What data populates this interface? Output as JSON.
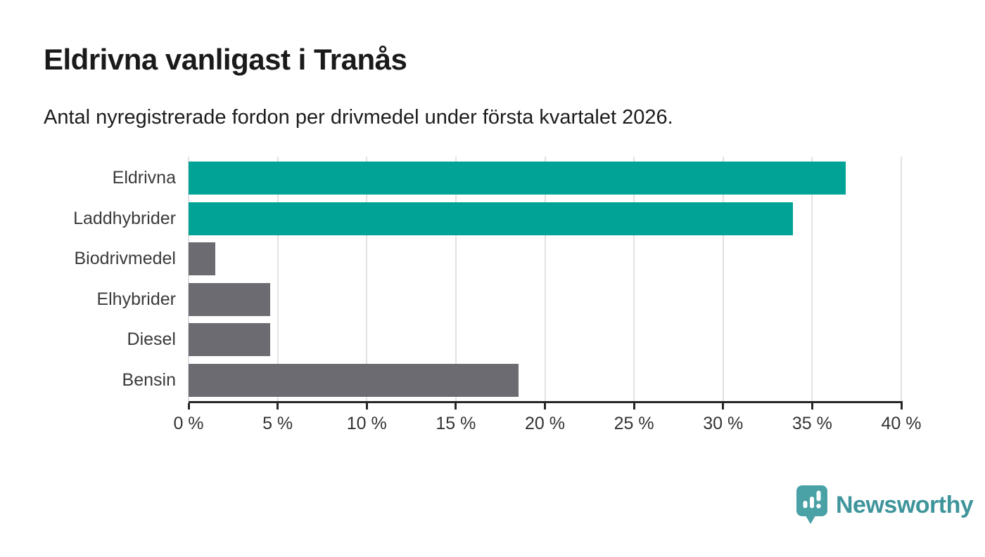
{
  "header": {
    "title": "Eldrivna vanligast i Tranås",
    "subtitle": "Antal nyregistrerade fordon per drivmedel under första kvartalet 2026."
  },
  "chart_data": {
    "type": "bar",
    "orientation": "horizontal",
    "title": "Eldrivna vanligast i Tranås",
    "subtitle": "Antal nyregistrerade fordon per drivmedel under första kvartalet 2026.",
    "categories": [
      "Eldrivna",
      "Laddhybrider",
      "Biodrivmedel",
      "Elhybrider",
      "Diesel",
      "Bensin"
    ],
    "values": [
      36.9,
      33.9,
      1.5,
      4.6,
      4.6,
      18.5
    ],
    "unit": "%",
    "xlim": [
      0,
      40
    ],
    "x_ticks": [
      0,
      5,
      10,
      15,
      20,
      25,
      30,
      35,
      40
    ],
    "x_tick_labels": [
      "0 %",
      "5 %",
      "10 %",
      "15 %",
      "20 %",
      "25 %",
      "30 %",
      "35 %",
      "40 %"
    ],
    "bar_colors": [
      "#00a396",
      "#00a396",
      "#6b6b71",
      "#6b6b71",
      "#6b6b71",
      "#6b6b71"
    ],
    "grid": true,
    "gridline_color": "#e2e2e2",
    "axis_color": "#262626",
    "legend": null,
    "colors": {
      "highlight": "#00a396",
      "default": "#6b6b71"
    }
  },
  "footer": {
    "brand": "Newsworthy",
    "brand_text_color": "#3e959b",
    "brand_icon": "newsworthy-pin-barchart-icon",
    "brand_icon_color": "#4aa1a6"
  }
}
